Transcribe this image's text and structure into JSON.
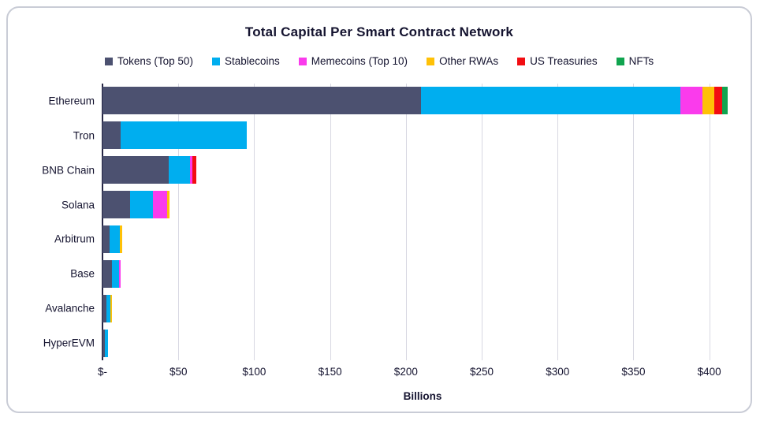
{
  "title": "Total Capital Per Smart Contract Network",
  "xlabel": "Billions",
  "colors": {
    "text": "#14132f",
    "gridline": "#d8d8e2",
    "axis_line": "#262645",
    "card_border": "#c9ccd6",
    "background": "#ffffff"
  },
  "chart_data": {
    "type": "bar",
    "orientation": "horizontal",
    "stacked": true,
    "title": "Total Capital Per Smart Contract Network",
    "xlabel": "Billions",
    "ylabel": "",
    "units": "USD billions",
    "categories": [
      "Ethereum",
      "Tron",
      "BNB Chain",
      "Solana",
      "Arbitrum",
      "Base",
      "Avalanche",
      "HyperEVM"
    ],
    "series": [
      {
        "name": "Tokens (Top 50)",
        "color": "#4c5170",
        "values": [
          210,
          12,
          43.5,
          18,
          4.5,
          6,
          2.5,
          1.5
        ]
      },
      {
        "name": "Stablecoins",
        "color": "#00aeef",
        "values": [
          171,
          83,
          14,
          15.5,
          7,
          5,
          2.5,
          2
        ]
      },
      {
        "name": "Memecoins (Top 10)",
        "color": "#fa3bec",
        "values": [
          14.5,
          0,
          2,
          9,
          0,
          1,
          0,
          0
        ]
      },
      {
        "name": "Other RWAs",
        "color": "#ffc107",
        "values": [
          8,
          0,
          0,
          1.5,
          1.5,
          0,
          1,
          0
        ]
      },
      {
        "name": "US Treasuries",
        "color": "#f20d12",
        "values": [
          5,
          0,
          2.5,
          0,
          0,
          0,
          0,
          0
        ]
      },
      {
        "name": "NFTs",
        "color": "#10a44f",
        "values": [
          3.5,
          0,
          0,
          0,
          0,
          0,
          0,
          0
        ]
      }
    ],
    "totals": [
      412,
      95,
      62,
      44,
      13,
      12,
      6,
      3.5
    ],
    "x_ticks": [
      "$-",
      "$50",
      "$100",
      "$150",
      "$200",
      "$250",
      "$300",
      "$350",
      "$400"
    ],
    "x_tick_values": [
      0,
      50,
      100,
      150,
      200,
      250,
      300,
      350,
      400
    ],
    "xlim": [
      0,
      422
    ],
    "grid": "vertical",
    "legend_position": "top"
  }
}
